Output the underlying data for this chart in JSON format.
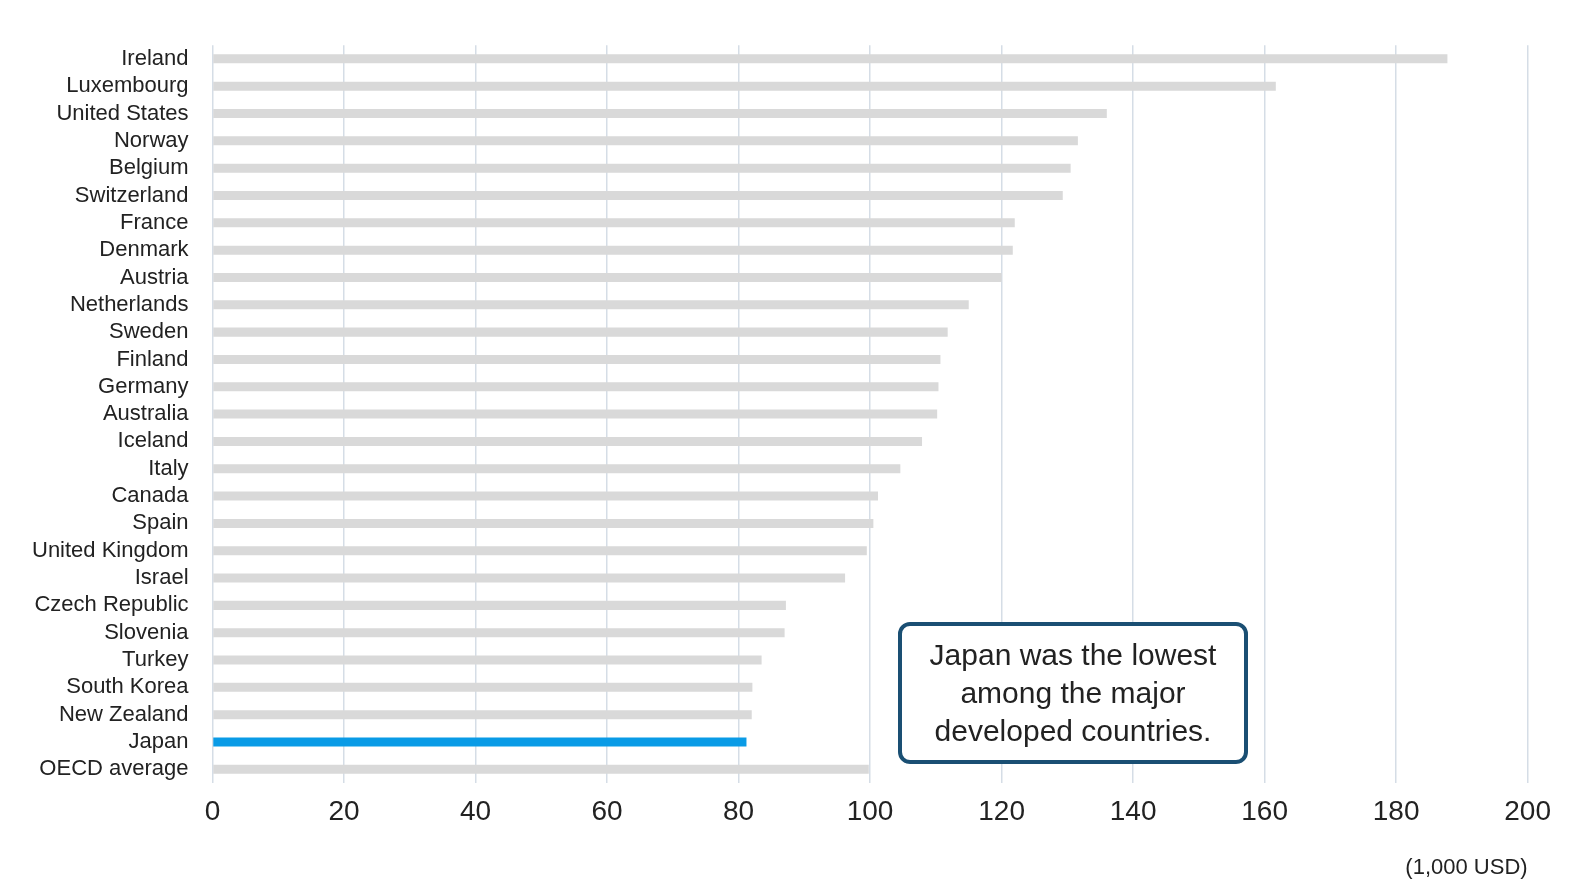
{
  "chart_data": {
    "type": "bar",
    "orientation": "horizontal",
    "xlabel": "(1,000 USD)",
    "categories": [
      "Ireland",
      "Luxembourg",
      "United States",
      "Norway",
      "Belgium",
      "Switzerland",
      "France",
      "Denmark",
      "Austria",
      "Netherlands",
      "Sweden",
      "Finland",
      "Germany",
      "Australia",
      "Iceland",
      "Italy",
      "Canada",
      "Spain",
      "United Kingdom",
      "Israel",
      "Czech Republic",
      "Slovenia",
      "Turkey",
      "South Korea",
      "New Zealand",
      "Japan",
      "OECD average"
    ],
    "values": [
      187.8,
      161.7,
      136.0,
      131.6,
      130.5,
      129.3,
      122.0,
      121.7,
      120.0,
      115.0,
      111.8,
      110.7,
      110.4,
      110.2,
      107.9,
      104.6,
      101.2,
      100.5,
      99.5,
      96.2,
      87.2,
      87.0,
      83.5,
      82.1,
      82.0,
      81.2,
      99.8
    ],
    "colors": [
      "#d9d9d9",
      "#d9d9d9",
      "#d9d9d9",
      "#d9d9d9",
      "#d9d9d9",
      "#d9d9d9",
      "#d9d9d9",
      "#d9d9d9",
      "#d9d9d9",
      "#d9d9d9",
      "#d9d9d9",
      "#d9d9d9",
      "#d9d9d9",
      "#d9d9d9",
      "#d9d9d9",
      "#d9d9d9",
      "#d9d9d9",
      "#d9d9d9",
      "#d9d9d9",
      "#d9d9d9",
      "#d9d9d9",
      "#d9d9d9",
      "#d9d9d9",
      "#d9d9d9",
      "#d9d9d9",
      "#0a9be6",
      "#d9d9d9"
    ],
    "xlim": [
      0,
      200
    ],
    "xticks": [
      0,
      20,
      40,
      60,
      80,
      100,
      120,
      140,
      160,
      180,
      200
    ],
    "grid": "x",
    "annotations": [
      "Japan was the lowest among the major developed countries."
    ]
  }
}
